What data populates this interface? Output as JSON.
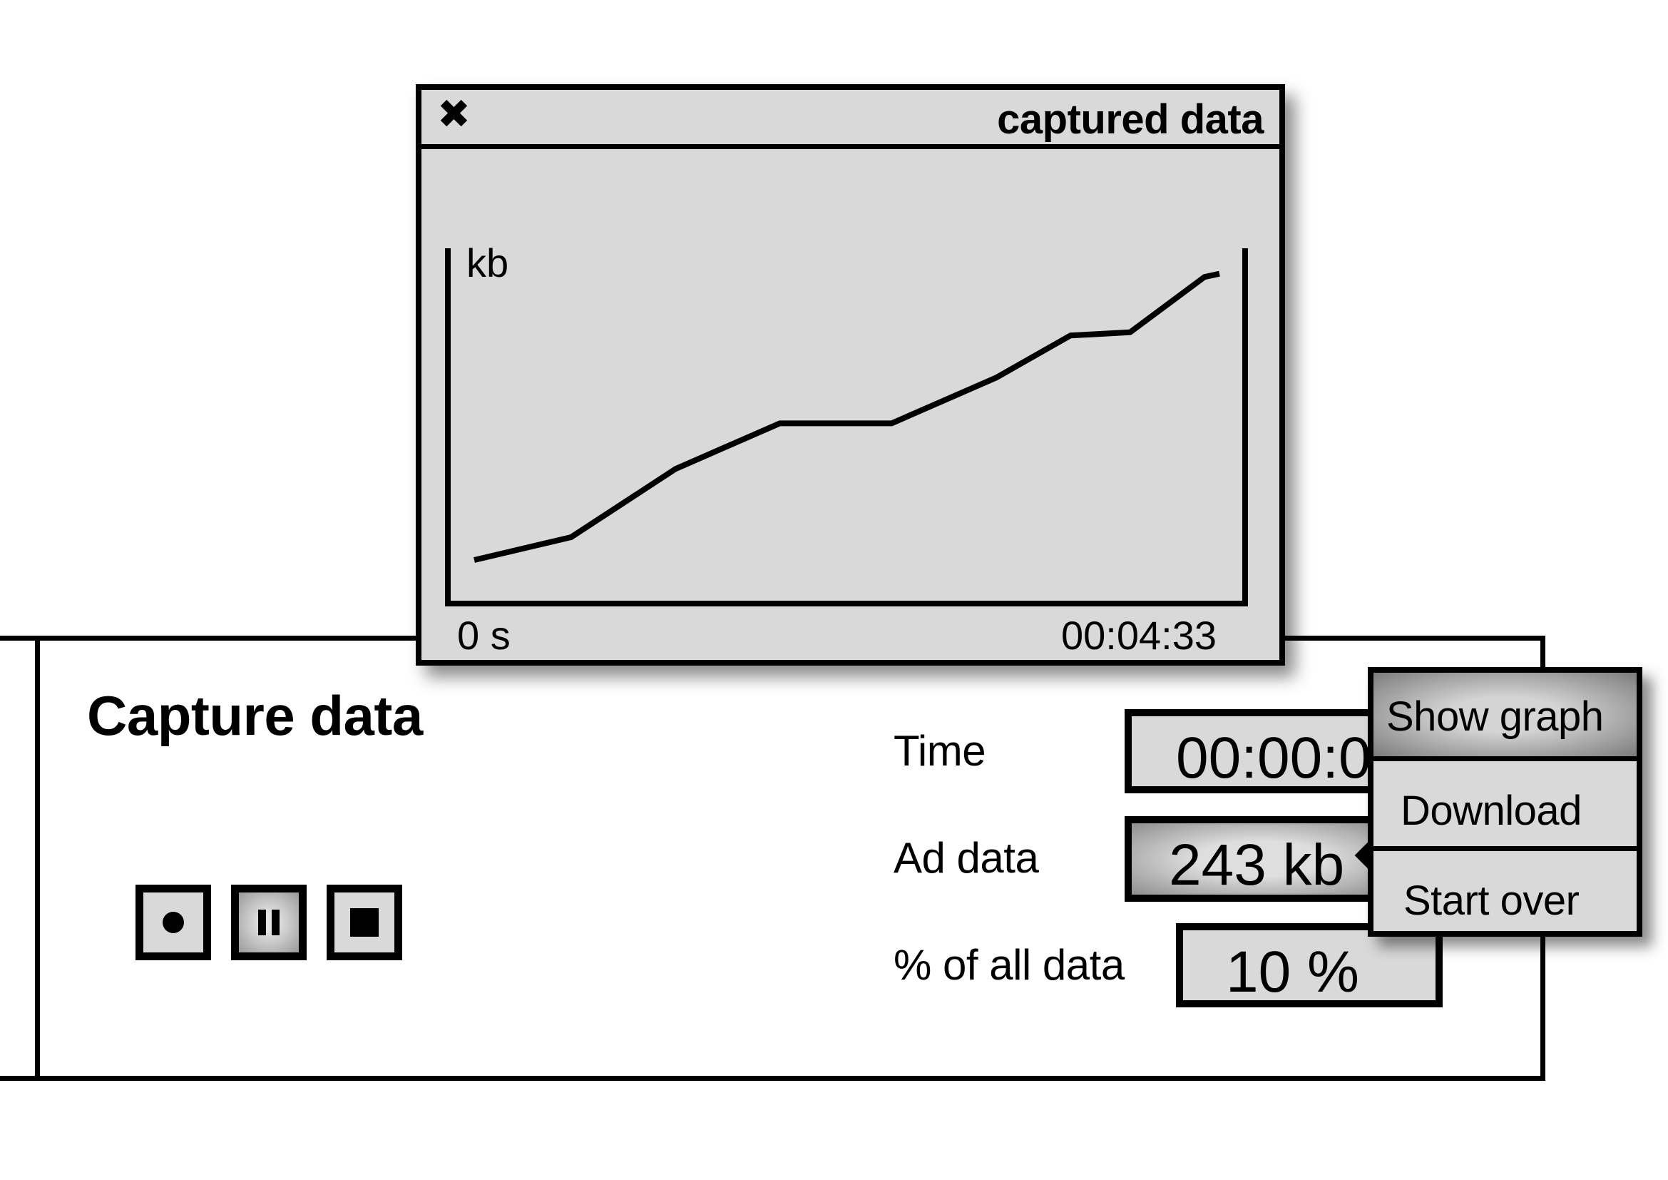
{
  "panel": {
    "title": "Capture data"
  },
  "controls": [
    {
      "name": "record",
      "icon": "record-icon"
    },
    {
      "name": "pause",
      "icon": "pause-icon",
      "pressed": true
    },
    {
      "name": "stop",
      "icon": "stop-icon"
    }
  ],
  "fields": {
    "time_label": "Time",
    "time_value": "00:00:00",
    "ad_label": "Ad data",
    "ad_value": "243 kb",
    "pct_label": "% of all data",
    "pct_value": "10 %"
  },
  "menu": {
    "items": [
      "Show graph",
      "Download",
      "Start over"
    ]
  },
  "graph_window": {
    "title": "captured data",
    "close_icon": "close-icon"
  },
  "chart_data": {
    "type": "line",
    "ylabel": "kb",
    "x_start_label": "0 s",
    "x_end_label": "00:04:33",
    "x": [
      0,
      0.13,
      0.27,
      0.41,
      0.56,
      0.7,
      0.8,
      0.88,
      0.98,
      1.0
    ],
    "values": [
      0.09,
      0.16,
      0.37,
      0.51,
      0.51,
      0.65,
      0.78,
      0.79,
      0.96,
      0.97
    ],
    "line_color": "#000000",
    "background": "#d9d9d9"
  }
}
